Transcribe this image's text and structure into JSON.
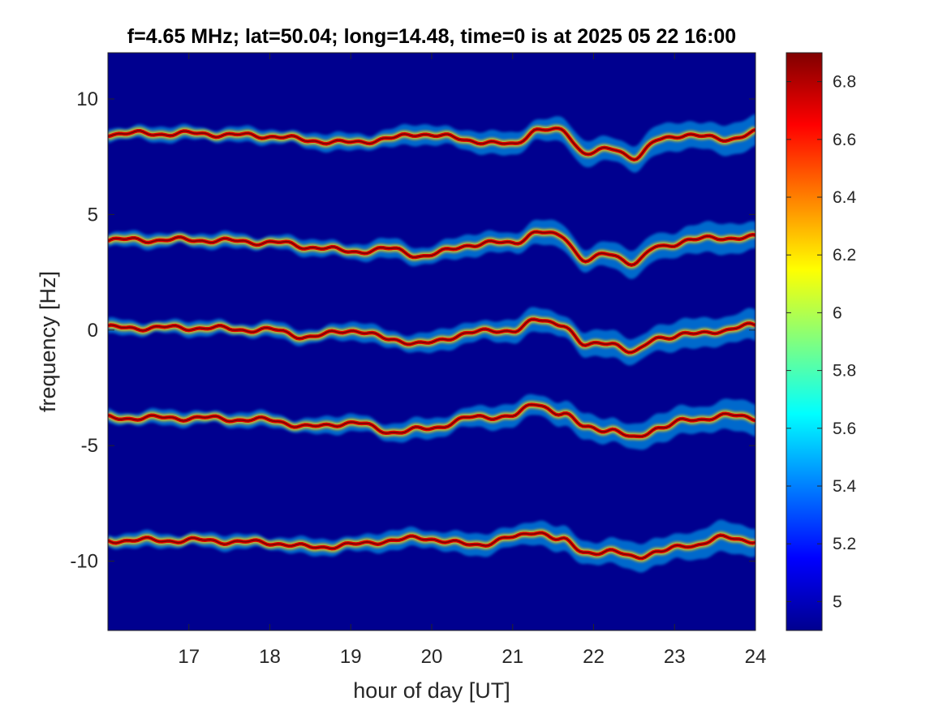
{
  "chart_data": {
    "type": "heatmap",
    "title": "f=4.65 MHz;  lat=50.04; long=14.48, time=0 is at 2025 05 22 16:00",
    "xlabel": "hour of day [UT]",
    "ylabel": "frequency [Hz]",
    "xlim": [
      16,
      24
    ],
    "ylim": [
      -13,
      12
    ],
    "xticks": [
      17,
      18,
      19,
      20,
      21,
      22,
      23,
      24
    ],
    "xtick_labels": [
      "17",
      "18",
      "19",
      "20",
      "21",
      "22",
      "23",
      "24"
    ],
    "yticks": [
      10,
      5,
      0,
      -5,
      -10
    ],
    "ytick_labels": [
      "10",
      "5",
      "0",
      "-5",
      "-10"
    ],
    "colormap": "jet",
    "background_color": "#00008F",
    "colorbar": {
      "clim": [
        4.9,
        6.9
      ],
      "ticks": [
        6.8,
        6.6,
        6.4,
        6.2,
        6,
        5.8,
        5.6,
        5.4,
        5.2,
        5
      ],
      "tick_labels": [
        "6.8",
        "6.6",
        "6.4",
        "6.2",
        "6",
        "5.8",
        "5.6",
        "5.4",
        "5.2",
        "5"
      ]
    },
    "traces": [
      {
        "base_frequency": 8.5,
        "hours": [
          16,
          17,
          18,
          18.5,
          19,
          19.5,
          19.9,
          20.5,
          21,
          21.3,
          21.6,
          21.9,
          22.2,
          22.5,
          22.8,
          23.2,
          23.6,
          24
        ],
        "frequencies": [
          8.5,
          8.5,
          8.4,
          8.2,
          8.1,
          8.3,
          8.5,
          8.2,
          8.0,
          8.7,
          8.6,
          7.7,
          7.8,
          7.5,
          8.2,
          8.5,
          8.2,
          8.6
        ]
      },
      {
        "base_frequency": 3.9,
        "hours": [
          16,
          17,
          18,
          18.5,
          19,
          19.5,
          19.9,
          20.5,
          21,
          21.3,
          21.6,
          21.9,
          22.2,
          22.5,
          22.8,
          23.2,
          23.6,
          24
        ],
        "frequencies": [
          3.9,
          3.9,
          3.8,
          3.6,
          3.4,
          3.5,
          3.2,
          3.7,
          3.8,
          4.2,
          4.1,
          3.0,
          3.3,
          2.9,
          3.6,
          3.9,
          4.0,
          4.0
        ]
      },
      {
        "base_frequency": 0.1,
        "hours": [
          16,
          17,
          18,
          18.5,
          19,
          19.5,
          19.9,
          20.5,
          21,
          21.3,
          21.6,
          21.9,
          22.2,
          22.5,
          22.8,
          23.2,
          23.6,
          24
        ],
        "frequencies": [
          0.1,
          0.1,
          0.0,
          -0.3,
          0.0,
          -0.4,
          -0.6,
          -0.1,
          0.0,
          0.4,
          0.3,
          -0.7,
          -0.5,
          -1.0,
          -0.3,
          -0.2,
          0.0,
          0.2
        ]
      },
      {
        "base_frequency": -3.8,
        "hours": [
          16,
          17,
          18,
          18.5,
          19,
          19.5,
          19.9,
          20.5,
          21,
          21.3,
          21.6,
          21.9,
          22.2,
          22.5,
          22.8,
          23.2,
          23.6,
          24
        ],
        "frequencies": [
          -3.8,
          -3.8,
          -3.9,
          -4.2,
          -4.0,
          -4.4,
          -4.3,
          -3.8,
          -3.7,
          -3.2,
          -3.6,
          -4.2,
          -4.3,
          -4.7,
          -4.2,
          -3.9,
          -3.7,
          -3.8
        ]
      },
      {
        "base_frequency": -9.1,
        "hours": [
          16,
          17,
          18,
          18.5,
          19,
          19.5,
          19.9,
          20.5,
          21,
          21.3,
          21.6,
          21.9,
          22.2,
          22.5,
          22.8,
          23.2,
          23.6,
          24
        ],
        "frequencies": [
          -9.1,
          -9.1,
          -9.2,
          -9.4,
          -9.3,
          -9.1,
          -9.0,
          -9.3,
          -9.0,
          -8.7,
          -9.1,
          -9.6,
          -9.6,
          -9.8,
          -9.6,
          -9.3,
          -9.0,
          -9.1
        ]
      }
    ]
  }
}
